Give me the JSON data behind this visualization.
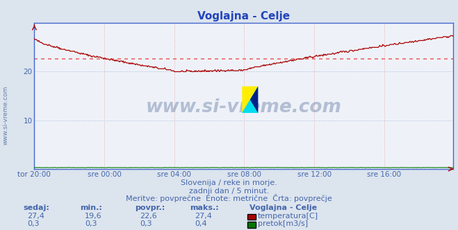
{
  "title": "Voglajna - Celje",
  "bg_color": "#dce4ee",
  "plot_bg_color": "#eef2f8",
  "grid_color": "#e8b8b8",
  "grid_color_h": "#c8d0e0",
  "x_labels": [
    "tor 20:00",
    "sre 00:00",
    "sre 04:00",
    "sre 08:00",
    "sre 12:00",
    "sre 16:00"
  ],
  "x_ticks_pos": [
    0,
    96,
    192,
    288,
    384,
    480
  ],
  "total_points": 576,
  "y_min": 0,
  "y_max": 30,
  "y_ticks": [
    10,
    20
  ],
  "avg_temp": 22.6,
  "temp_color": "#aa0000",
  "pretok_color": "#007700",
  "avg_line_color": "#ee6666",
  "watermark_text_color": "#1a3a7a",
  "axis_color": "#4466cc",
  "subtitle1": "Slovenija / reke in morje.",
  "subtitle2": "zadnji dan / 5 minut.",
  "subtitle3": "Meritve: povprečne  Enote: metrične  Črta: povprečje",
  "table_headers": [
    "sedaj:",
    "min.:",
    "povpr.:",
    "maks.:"
  ],
  "row1_values": [
    "27,4",
    "19,6",
    "22,6",
    "27,4"
  ],
  "row2_values": [
    "0,3",
    "0,3",
    "0,3",
    "0,4"
  ],
  "legend_label1": "temperatura[C]",
  "legend_label2": "pretok[m3/s]",
  "legend_station": "Voglajna - Celje",
  "text_color": "#4466aa",
  "title_color": "#2244bb",
  "logo_yellow": "#ffee00",
  "logo_cyan": "#00ddee",
  "logo_blue": "#002288"
}
